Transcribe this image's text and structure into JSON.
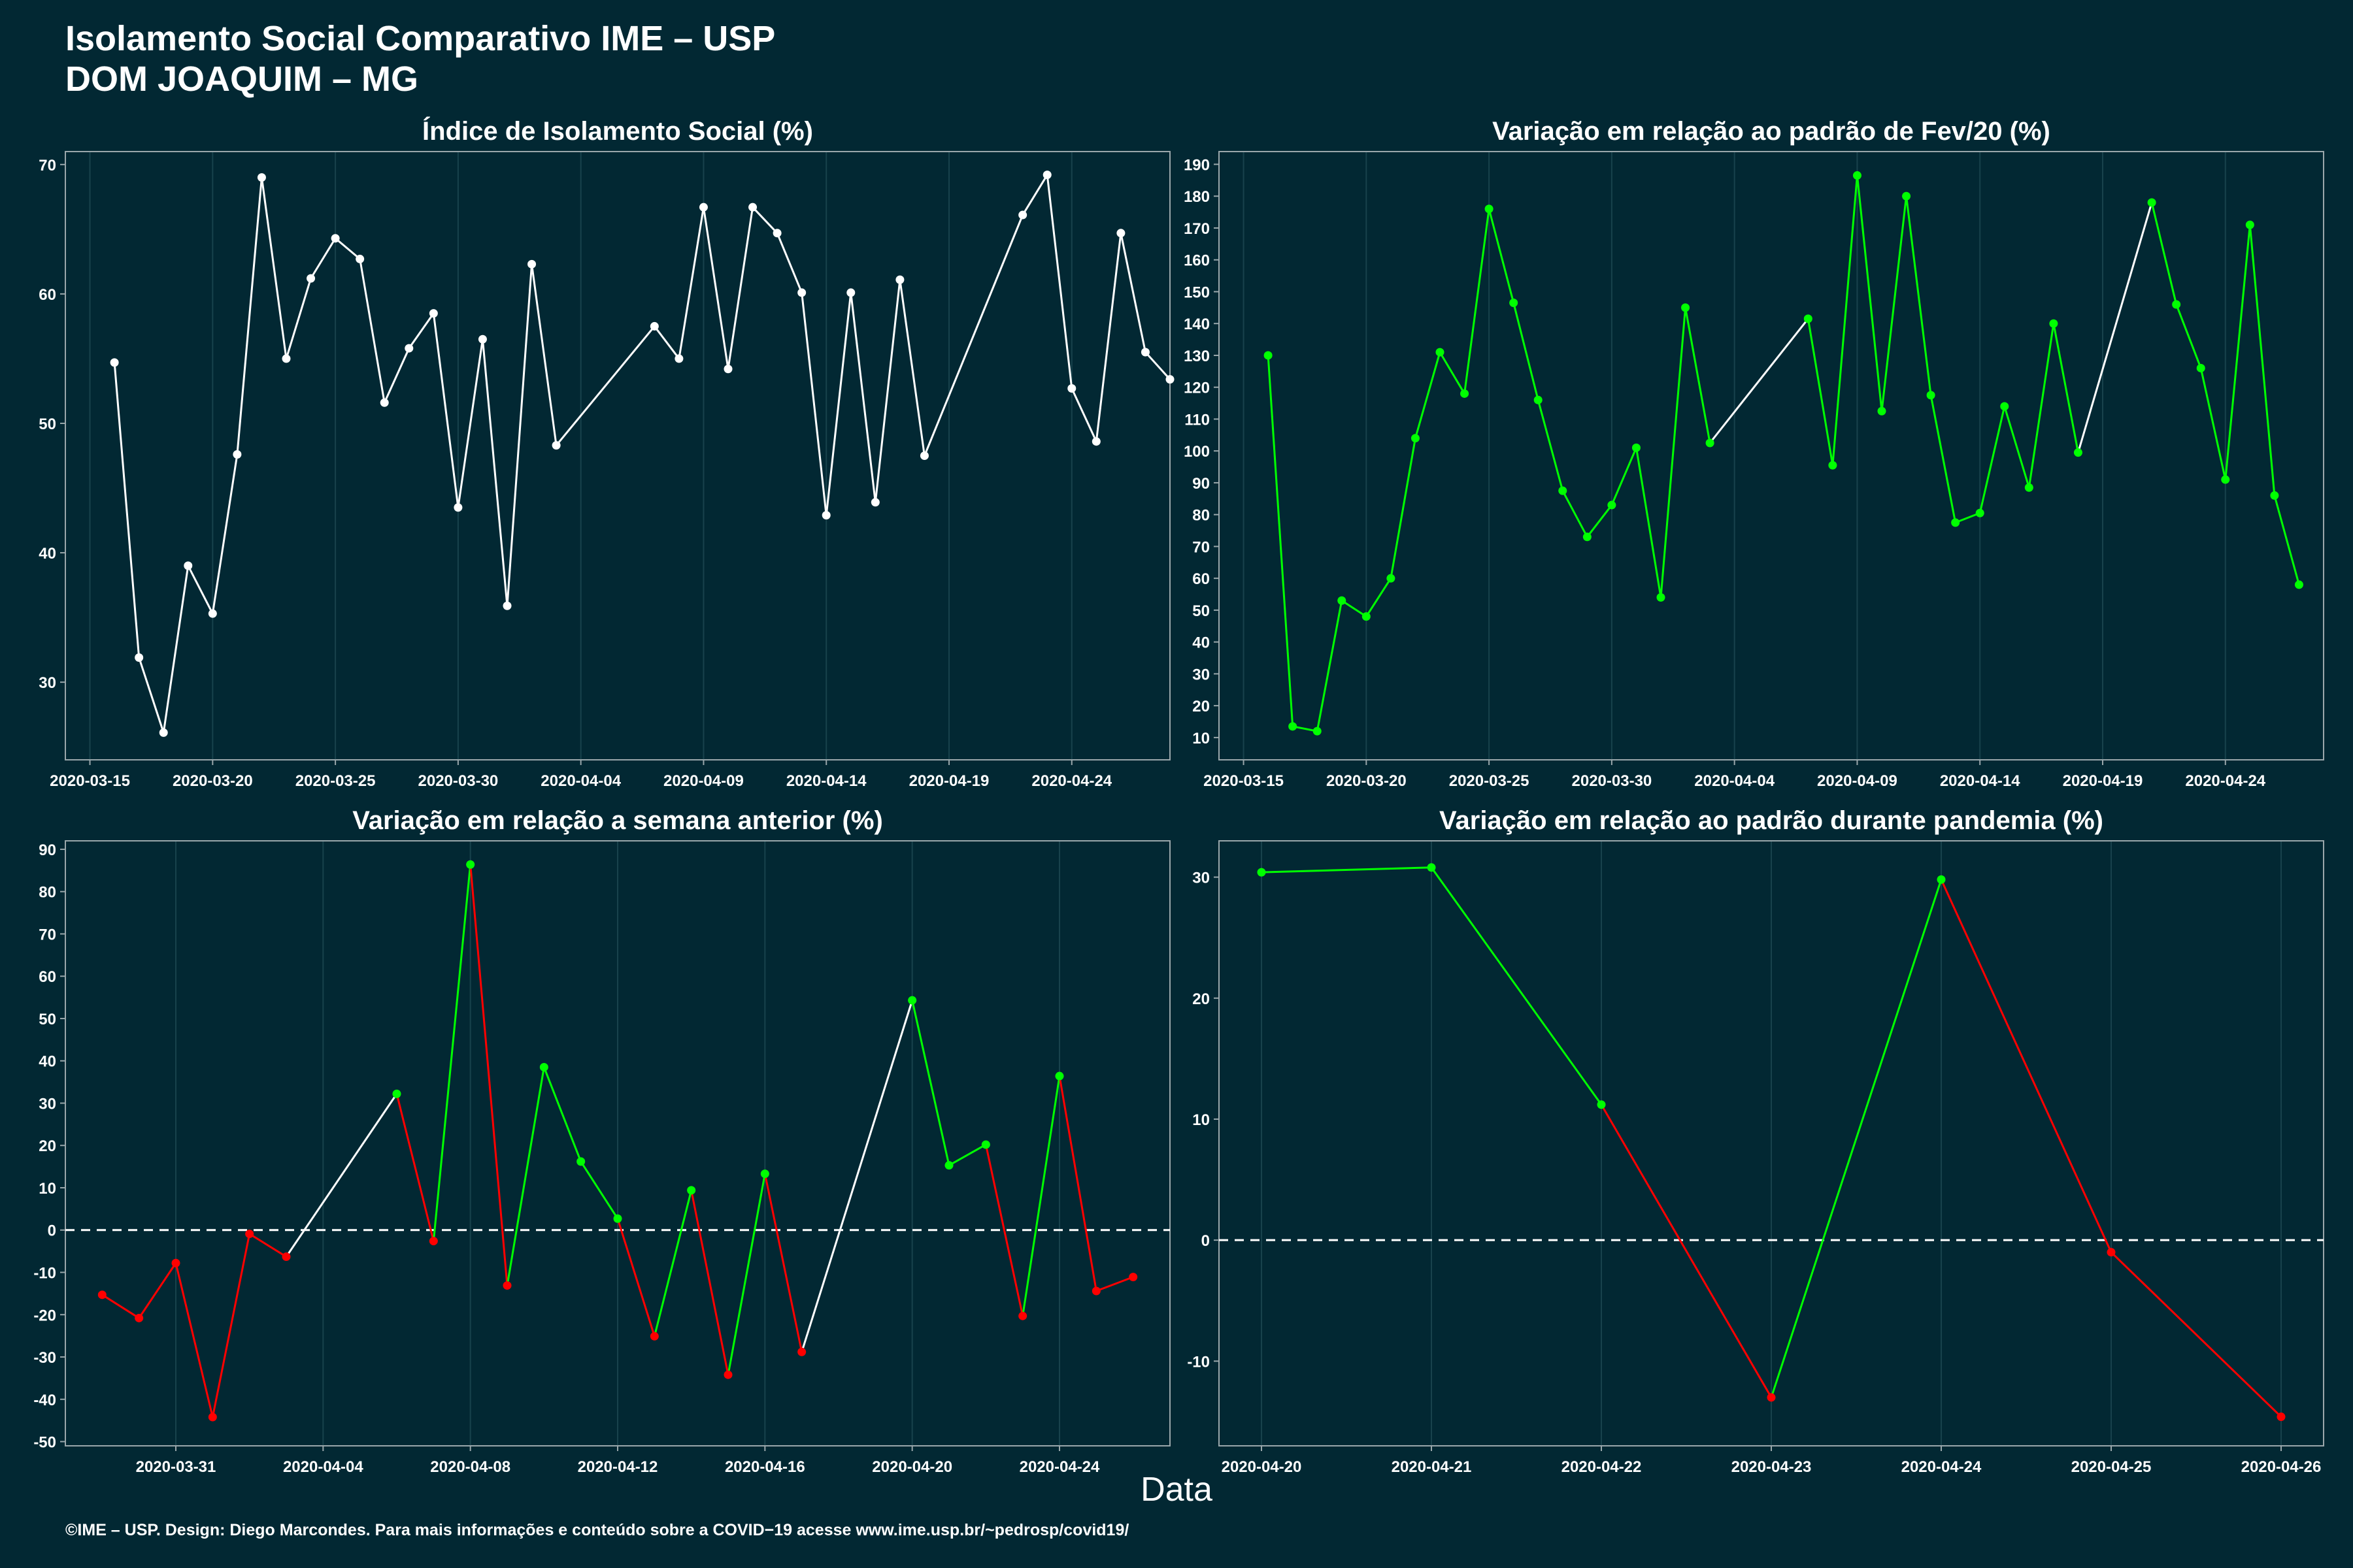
{
  "header": {
    "title_line1": "Isolamento Social Comparativo IME – USP",
    "title_line2": "DOM JOAQUIM – MG"
  },
  "footer": {
    "x_axis_title": "Data",
    "credits": "©IME – USP. Design: Diego Marcondes. Para mais informações e conteúdo sobre a COVID−19 acesse www.ime.usp.br/~pedrosp/covid19/"
  },
  "colors": {
    "background": "#022833",
    "panel_border": "#9aa7ab",
    "grid": "#18424c",
    "white_series": "#ffffff",
    "increase": "#00ff00",
    "decrease": "#ff0000"
  },
  "chart_data": [
    {
      "id": "isolamento",
      "type": "line",
      "title": "Índice de Isolamento Social (%)",
      "color_mode": "white",
      "x_type": "date",
      "xlim": [
        "2020-03-14",
        "2020-04-28"
      ],
      "ylim": [
        24,
        71
      ],
      "x_ticks": [
        "2020-03-15",
        "2020-03-20",
        "2020-03-25",
        "2020-03-30",
        "2020-04-04",
        "2020-04-09",
        "2020-04-14",
        "2020-04-19",
        "2020-04-24"
      ],
      "y_ticks": [
        30,
        40,
        50,
        60,
        70
      ],
      "zero_line": false,
      "points": [
        {
          "x": "2020-03-16",
          "y": 54.7
        },
        {
          "x": "2020-03-17",
          "y": 31.9
        },
        {
          "x": "2020-03-18",
          "y": 26.1
        },
        {
          "x": "2020-03-19",
          "y": 39.0
        },
        {
          "x": "2020-03-20",
          "y": 35.3
        },
        {
          "x": "2020-03-21",
          "y": 47.6
        },
        {
          "x": "2020-03-22",
          "y": 69.0
        },
        {
          "x": "2020-03-23",
          "y": 55.0
        },
        {
          "x": "2020-03-24",
          "y": 61.2
        },
        {
          "x": "2020-03-25",
          "y": 64.3
        },
        {
          "x": "2020-03-26",
          "y": 62.7
        },
        {
          "x": "2020-03-27",
          "y": 51.6
        },
        {
          "x": "2020-03-28",
          "y": 55.8
        },
        {
          "x": "2020-03-29",
          "y": 58.5
        },
        {
          "x": "2020-03-30",
          "y": 43.5
        },
        {
          "x": "2020-03-31",
          "y": 56.5
        },
        {
          "x": "2020-04-01",
          "y": 35.9
        },
        {
          "x": "2020-04-02",
          "y": 62.3
        },
        {
          "x": "2020-04-03",
          "y": 48.3
        },
        {
          "x": "2020-04-07",
          "y": 57.5
        },
        {
          "x": "2020-04-08",
          "y": 55.0
        },
        {
          "x": "2020-04-09",
          "y": 66.7
        },
        {
          "x": "2020-04-10",
          "y": 54.2
        },
        {
          "x": "2020-04-11",
          "y": 66.7
        },
        {
          "x": "2020-04-12",
          "y": 64.7
        },
        {
          "x": "2020-04-13",
          "y": 60.1
        },
        {
          "x": "2020-04-14",
          "y": 42.9
        },
        {
          "x": "2020-04-15",
          "y": 60.1
        },
        {
          "x": "2020-04-16",
          "y": 43.9
        },
        {
          "x": "2020-04-17",
          "y": 61.1
        },
        {
          "x": "2020-04-18",
          "y": 47.5
        },
        {
          "x": "2020-04-22",
          "y": 66.1
        },
        {
          "x": "2020-04-23",
          "y": 69.2
        },
        {
          "x": "2020-04-24",
          "y": 52.7
        },
        {
          "x": "2020-04-25",
          "y": 48.6
        },
        {
          "x": "2020-04-26",
          "y": 64.7
        },
        {
          "x": "2020-04-27",
          "y": 55.5
        },
        {
          "x": "2020-04-28",
          "y": 53.4
        }
      ]
    },
    {
      "id": "fev20",
      "type": "line",
      "title": "Variação em relação ao padrão de Fev/20 (%)",
      "color_mode": "green",
      "x_type": "date",
      "xlim": [
        "2020-03-14",
        "2020-04-28"
      ],
      "ylim": [
        3,
        194
      ],
      "x_ticks": [
        "2020-03-15",
        "2020-03-20",
        "2020-03-25",
        "2020-03-30",
        "2020-04-04",
        "2020-04-09",
        "2020-04-14",
        "2020-04-19",
        "2020-04-24"
      ],
      "y_ticks": [
        10,
        20,
        30,
        40,
        50,
        60,
        70,
        80,
        90,
        100,
        110,
        120,
        130,
        140,
        150,
        160,
        170,
        180,
        190
      ],
      "zero_line": false,
      "points": [
        {
          "x": "2020-03-16",
          "y": 130
        },
        {
          "x": "2020-03-17",
          "y": 13.5
        },
        {
          "x": "2020-03-18",
          "y": 12
        },
        {
          "x": "2020-03-19",
          "y": 53
        },
        {
          "x": "2020-03-20",
          "y": 48
        },
        {
          "x": "2020-03-21",
          "y": 60
        },
        {
          "x": "2020-03-22",
          "y": 104
        },
        {
          "x": "2020-03-23",
          "y": 131
        },
        {
          "x": "2020-03-24",
          "y": 118
        },
        {
          "x": "2020-03-25",
          "y": 176
        },
        {
          "x": "2020-03-26",
          "y": 146.5
        },
        {
          "x": "2020-03-27",
          "y": 116
        },
        {
          "x": "2020-03-28",
          "y": 87.5
        },
        {
          "x": "2020-03-29",
          "y": 73
        },
        {
          "x": "2020-03-30",
          "y": 83
        },
        {
          "x": "2020-03-31",
          "y": 101
        },
        {
          "x": "2020-04-01",
          "y": 54
        },
        {
          "x": "2020-04-02",
          "y": 145
        },
        {
          "x": "2020-04-03",
          "y": 102.5
        },
        {
          "x": "2020-04-07",
          "y": 141.5
        },
        {
          "x": "2020-04-08",
          "y": 95.5
        },
        {
          "x": "2020-04-09",
          "y": 186.5
        },
        {
          "x": "2020-04-10",
          "y": 112.5
        },
        {
          "x": "2020-04-11",
          "y": 180
        },
        {
          "x": "2020-04-12",
          "y": 117.5
        },
        {
          "x": "2020-04-13",
          "y": 77.5
        },
        {
          "x": "2020-04-14",
          "y": 80.5
        },
        {
          "x": "2020-04-15",
          "y": 114
        },
        {
          "x": "2020-04-16",
          "y": 88.5
        },
        {
          "x": "2020-04-17",
          "y": 140
        },
        {
          "x": "2020-04-18",
          "y": 99.5
        },
        {
          "x": "2020-04-21",
          "y": 178
        },
        {
          "x": "2020-04-22",
          "y": 146
        },
        {
          "x": "2020-04-23",
          "y": 126
        },
        {
          "x": "2020-04-24",
          "y": 91
        },
        {
          "x": "2020-04-25",
          "y": 171
        },
        {
          "x": "2020-04-26",
          "y": 86
        },
        {
          "x": "2020-04-27",
          "y": 58
        }
      ]
    },
    {
      "id": "semana",
      "type": "line",
      "title": "Variação em relação a semana anterior (%)",
      "color_mode": "sign",
      "x_type": "date",
      "xlim": [
        "2020-03-28",
        "2020-04-27"
      ],
      "ylim": [
        -51,
        92
      ],
      "x_ticks": [
        "2020-03-31",
        "2020-04-04",
        "2020-04-08",
        "2020-04-12",
        "2020-04-16",
        "2020-04-20",
        "2020-04-24"
      ],
      "y_ticks": [
        -50,
        -40,
        -30,
        -20,
        -10,
        0,
        10,
        20,
        30,
        40,
        50,
        60,
        70,
        80,
        90
      ],
      "zero_line": true,
      "points": [
        {
          "x": "2020-03-29",
          "y": -15.3
        },
        {
          "x": "2020-03-30",
          "y": -20.8
        },
        {
          "x": "2020-03-31",
          "y": -7.8
        },
        {
          "x": "2020-04-01",
          "y": -44.2
        },
        {
          "x": "2020-04-02",
          "y": -0.9
        },
        {
          "x": "2020-04-03",
          "y": -6.3
        },
        {
          "x": "2020-04-06",
          "y": 32.2
        },
        {
          "x": "2020-04-07",
          "y": -2.6
        },
        {
          "x": "2020-04-08",
          "y": 86.4
        },
        {
          "x": "2020-04-09",
          "y": -13.1
        },
        {
          "x": "2020-04-10",
          "y": 38.5
        },
        {
          "x": "2020-04-11",
          "y": 16.2
        },
        {
          "x": "2020-04-12",
          "y": 2.7
        },
        {
          "x": "2020-04-13",
          "y": -25.1
        },
        {
          "x": "2020-04-14",
          "y": 9.4
        },
        {
          "x": "2020-04-15",
          "y": -34.2
        },
        {
          "x": "2020-04-16",
          "y": 13.3
        },
        {
          "x": "2020-04-17",
          "y": -28.8
        },
        {
          "x": "2020-04-20",
          "y": 54.3
        },
        {
          "x": "2020-04-21",
          "y": 15.3
        },
        {
          "x": "2020-04-22",
          "y": 20.2
        },
        {
          "x": "2020-04-23",
          "y": -20.3
        },
        {
          "x": "2020-04-24",
          "y": 36.4
        },
        {
          "x": "2020-04-25",
          "y": -14.4
        },
        {
          "x": "2020-04-26",
          "y": -11.1
        }
      ]
    },
    {
      "id": "pandemia",
      "type": "line",
      "title": "Variação em relação ao padrão durante pandemia (%)",
      "color_mode": "sign",
      "x_type": "date",
      "xlim": [
        "2020-04-19 18:00",
        "2020-04-26 06:00"
      ],
      "ylim": [
        -17,
        33
      ],
      "x_ticks": [
        "2020-04-20",
        "2020-04-21",
        "2020-04-22",
        "2020-04-23",
        "2020-04-24",
        "2020-04-25",
        "2020-04-26"
      ],
      "y_ticks": [
        -10,
        0,
        10,
        20,
        30
      ],
      "zero_line": true,
      "points": [
        {
          "x": "2020-04-20",
          "y": 30.4
        },
        {
          "x": "2020-04-21",
          "y": 30.8
        },
        {
          "x": "2020-04-22",
          "y": 11.2
        },
        {
          "x": "2020-04-23",
          "y": -13.0
        },
        {
          "x": "2020-04-24",
          "y": 29.8
        },
        {
          "x": "2020-04-25",
          "y": -1.0
        },
        {
          "x": "2020-04-26",
          "y": -14.6
        }
      ]
    }
  ]
}
